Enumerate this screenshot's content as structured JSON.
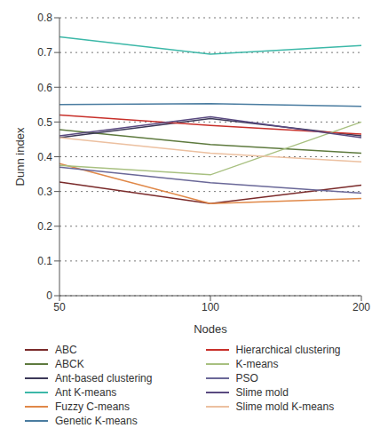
{
  "chart_data": {
    "type": "line",
    "x_label": "Nodes",
    "y_label": "Dunn index",
    "categories": [
      "50",
      "100",
      "200"
    ],
    "ylim": [
      0,
      0.8
    ],
    "yticks": [
      0,
      0.1,
      0.2,
      0.3,
      0.4,
      0.5,
      0.6,
      0.7,
      0.8
    ],
    "grid": true,
    "legend": "bottom",
    "series": [
      {
        "name": "ABC",
        "color": "#7a2a2a",
        "values": [
          0.327,
          0.265,
          0.318
        ]
      },
      {
        "name": "ABCK",
        "color": "#5e7a3e",
        "values": [
          0.478,
          0.435,
          0.41
        ]
      },
      {
        "name": "Ant-based clustering",
        "color": "#3c3858",
        "values": [
          0.455,
          0.51,
          0.46
        ]
      },
      {
        "name": "Ant K-means",
        "color": "#3cb8a8",
        "values": [
          0.745,
          0.695,
          0.72
        ]
      },
      {
        "name": "Fuzzy C-means",
        "color": "#e08848",
        "values": [
          0.38,
          0.265,
          0.28
        ]
      },
      {
        "name": "Genetic K-means",
        "color": "#4a7ca0",
        "values": [
          0.55,
          0.553,
          0.545
        ]
      },
      {
        "name": "Hierarchical clustering",
        "color": "#c8302a",
        "values": [
          0.52,
          0.49,
          0.465
        ]
      },
      {
        "name": "K-means",
        "color": "#a8c080",
        "values": [
          0.375,
          0.348,
          0.5
        ]
      },
      {
        "name": "PSO",
        "color": "#6a6898",
        "values": [
          0.37,
          0.325,
          0.295
        ]
      },
      {
        "name": "Slime mold",
        "color": "#5a4a80",
        "values": [
          0.46,
          0.515,
          0.455
        ]
      },
      {
        "name": "Slime mold K-means",
        "color": "#ecc0a0",
        "values": [
          0.455,
          0.41,
          0.385
        ]
      }
    ]
  }
}
